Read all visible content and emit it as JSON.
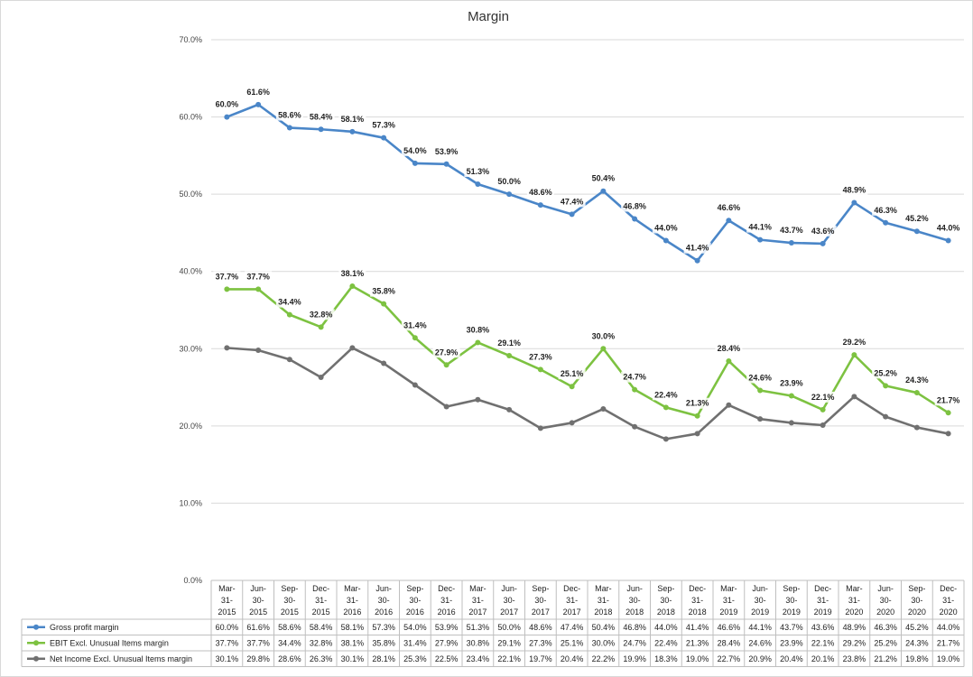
{
  "chart_data": {
    "type": "line",
    "title": "Margin",
    "xlabel": "",
    "ylabel": "",
    "ylim": [
      0,
      70
    ],
    "yticks": [
      "0.0%",
      "10.0%",
      "20.0%",
      "30.0%",
      "40.0%",
      "50.0%",
      "60.0%",
      "70.0%"
    ],
    "grid": true,
    "legend": "data-table-below",
    "categories": [
      [
        "Mar-",
        "31-",
        "2015"
      ],
      [
        "Jun-",
        "30-",
        "2015"
      ],
      [
        "Sep-",
        "30-",
        "2015"
      ],
      [
        "Dec-",
        "31-",
        "2015"
      ],
      [
        "Mar-",
        "31-",
        "2016"
      ],
      [
        "Jun-",
        "30-",
        "2016"
      ],
      [
        "Sep-",
        "30-",
        "2016"
      ],
      [
        "Dec-",
        "31-",
        "2016"
      ],
      [
        "Mar-",
        "31-",
        "2017"
      ],
      [
        "Jun-",
        "30-",
        "2017"
      ],
      [
        "Sep-",
        "30-",
        "2017"
      ],
      [
        "Dec-",
        "31-",
        "2017"
      ],
      [
        "Mar-",
        "31-",
        "2018"
      ],
      [
        "Jun-",
        "30-",
        "2018"
      ],
      [
        "Sep-",
        "30-",
        "2018"
      ],
      [
        "Dec-",
        "31-",
        "2018"
      ],
      [
        "Mar-",
        "31-",
        "2019"
      ],
      [
        "Jun-",
        "30-",
        "2019"
      ],
      [
        "Sep-",
        "30-",
        "2019"
      ],
      [
        "Dec-",
        "31-",
        "2019"
      ],
      [
        "Mar-",
        "31-",
        "2020"
      ],
      [
        "Jun-",
        "30-",
        "2020"
      ],
      [
        "Sep-",
        "30-",
        "2020"
      ],
      [
        "Dec-",
        "31-",
        "2020"
      ]
    ],
    "series": [
      {
        "name": "Gross profit margin",
        "color": "#4a86c8",
        "show_data_labels": true,
        "values": [
          60.0,
          61.6,
          58.6,
          58.4,
          58.1,
          57.3,
          54.0,
          53.9,
          51.3,
          50.0,
          48.6,
          47.4,
          50.4,
          46.8,
          44.0,
          41.4,
          46.6,
          44.1,
          43.7,
          43.6,
          48.9,
          46.3,
          45.2,
          44.0
        ],
        "labels": [
          "60.0%",
          "61.6%",
          "58.6%",
          "58.4%",
          "58.1%",
          "57.3%",
          "54.0%",
          "53.9%",
          "51.3%",
          "50.0%",
          "48.6%",
          "47.4%",
          "50.4%",
          "46.8%",
          "44.0%",
          "41.4%",
          "46.6%",
          "44.1%",
          "43.7%",
          "43.6%",
          "48.9%",
          "46.3%",
          "45.2%",
          "44.0%"
        ]
      },
      {
        "name": "EBIT Excl. Unusual Items margin",
        "color": "#7dc241",
        "show_data_labels": true,
        "values": [
          37.7,
          37.7,
          34.4,
          32.8,
          38.1,
          35.8,
          31.4,
          27.9,
          30.8,
          29.1,
          27.3,
          25.1,
          30.0,
          24.7,
          22.4,
          21.3,
          28.4,
          24.6,
          23.9,
          22.1,
          29.2,
          25.2,
          24.3,
          21.7
        ],
        "labels": [
          "37.7%",
          "37.7%",
          "34.4%",
          "32.8%",
          "38.1%",
          "35.8%",
          "31.4%",
          "27.9%",
          "30.8%",
          "29.1%",
          "27.3%",
          "25.1%",
          "30.0%",
          "24.7%",
          "22.4%",
          "21.3%",
          "28.4%",
          "24.6%",
          "23.9%",
          "22.1%",
          "29.2%",
          "25.2%",
          "24.3%",
          "21.7%"
        ]
      },
      {
        "name": "Net Income Excl. Unusual Items margin",
        "color": "#707070",
        "show_data_labels": false,
        "values": [
          30.1,
          29.8,
          28.6,
          26.3,
          30.1,
          28.1,
          25.3,
          22.5,
          23.4,
          22.1,
          19.7,
          20.4,
          22.2,
          19.9,
          18.3,
          19.0,
          22.7,
          20.9,
          20.4,
          20.1,
          23.8,
          21.2,
          19.8,
          19.0
        ],
        "labels": [
          "30.1%",
          "29.8%",
          "28.6%",
          "26.3%",
          "30.1%",
          "28.1%",
          "25.3%",
          "22.5%",
          "23.4%",
          "22.1%",
          "19.7%",
          "20.4%",
          "22.2%",
          "19.9%",
          "18.3%",
          "19.0%",
          "22.7%",
          "20.9%",
          "20.4%",
          "20.1%",
          "23.8%",
          "21.2%",
          "19.8%",
          "19.0%"
        ]
      }
    ]
  }
}
